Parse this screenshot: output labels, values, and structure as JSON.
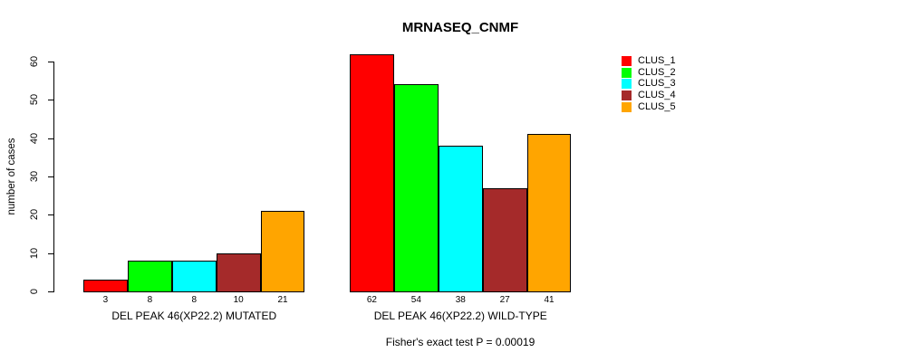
{
  "chart_data": {
    "type": "bar",
    "title": "MRNASEQ_CNMF",
    "ylabel": "number of cases",
    "xlabel": "",
    "ylim": [
      0,
      62
    ],
    "yticks": [
      0,
      10,
      20,
      30,
      40,
      50,
      60
    ],
    "grid": false,
    "legend_position": "right",
    "groups": [
      {
        "label": "DEL PEAK 46(XP22.2) MUTATED",
        "values": [
          3,
          8,
          8,
          10,
          21
        ]
      },
      {
        "label": "DEL PEAK 46(XP22.2) WILD-TYPE",
        "values": [
          62,
          54,
          38,
          27,
          41
        ]
      }
    ],
    "series": [
      {
        "name": "CLUS_1",
        "color": "#FF0000",
        "values": [
          3,
          62
        ]
      },
      {
        "name": "CLUS_2",
        "color": "#00FF00",
        "values": [
          8,
          54
        ]
      },
      {
        "name": "CLUS_3",
        "color": "#00FFFF",
        "values": [
          8,
          38
        ]
      },
      {
        "name": "CLUS_4",
        "color": "#A52A2A",
        "values": [
          10,
          27
        ]
      },
      {
        "name": "CLUS_5",
        "color": "#FFA500",
        "values": [
          21,
          41
        ]
      }
    ],
    "annotation": "Fisher's exact test P = 0.00019"
  }
}
